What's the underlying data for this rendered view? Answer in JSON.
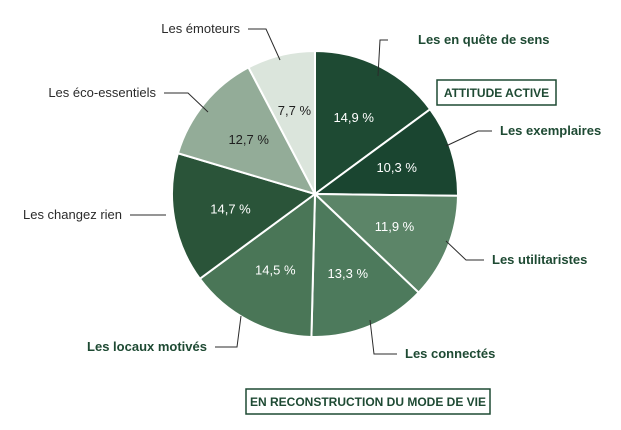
{
  "chart_data": {
    "type": "pie",
    "slices": [
      {
        "label": "Les en quête de sens",
        "value": 14.9,
        "value_label": "14,9 %",
        "color": "#1e4a33",
        "text_color": "#ffffff",
        "group": "active"
      },
      {
        "label": "Les exemplaires",
        "value": 10.3,
        "value_label": "10,3 %",
        "color": "#1a4530",
        "text_color": "#ffffff",
        "group": "active"
      },
      {
        "label": "Les utilitaristes",
        "value": 11.9,
        "value_label": "11,9 %",
        "color": "#5c8568",
        "text_color": "#ffffff",
        "group": "reconstruction"
      },
      {
        "label": "Les connectés",
        "value": 13.3,
        "value_label": "13,3 %",
        "color": "#4d7a5c",
        "text_color": "#ffffff",
        "group": "reconstruction"
      },
      {
        "label": "Les locaux motivés",
        "value": 14.5,
        "value_label": "14,5 %",
        "color": "#4a7657",
        "text_color": "#ffffff",
        "group": "reconstruction"
      },
      {
        "label": "Les changez rien",
        "value": 14.7,
        "value_label": "14,7 %",
        "color": "#2a5439",
        "text_color": "#ffffff",
        "group": "other"
      },
      {
        "label": "Les éco-essentiels",
        "value": 12.7,
        "value_label": "12,7 %",
        "color": "#93ac98",
        "text_color": "#1f1f1f",
        "group": "other"
      },
      {
        "label": "Les émoteurs",
        "value": 7.7,
        "value_label": "7,7 %",
        "color": "#dbe5dc",
        "text_color": "#1f1f1f",
        "group": "other"
      }
    ],
    "annotations": {
      "active": "ATTITUDE ACTIVE",
      "reconstruction": "EN RECONSTRUCTION DU MODE DE VIE"
    },
    "legend": "none"
  }
}
